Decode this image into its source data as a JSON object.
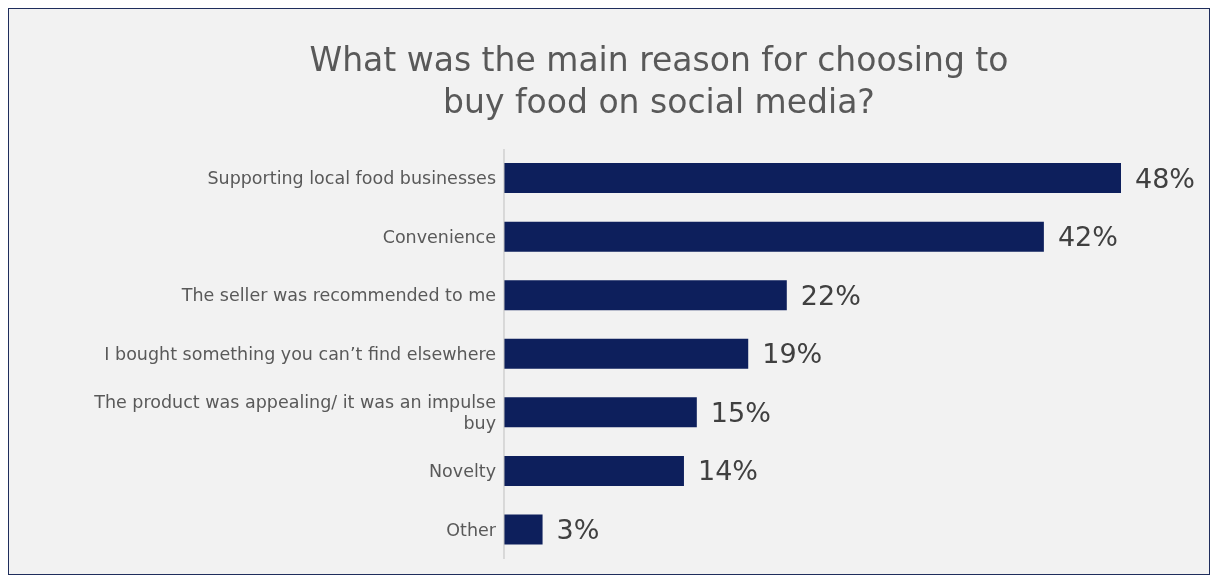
{
  "chart_data": {
    "type": "bar",
    "orientation": "horizontal",
    "title": "What was the main reason for choosing to buy food on social media?",
    "categories": [
      "Supporting local food businesses",
      "Convenience",
      "The seller was recommended to me",
      "I bought something you can’t find elsewhere",
      "The product was appealing/ it was an impulse buy",
      "Novelty",
      "Other"
    ],
    "values": [
      48,
      42,
      22,
      19,
      15,
      14,
      3
    ],
    "value_labels": [
      "48%",
      "42%",
      "22%",
      "19%",
      "15%",
      "14%",
      "3%"
    ],
    "color": "#0d1f5c",
    "grid": false,
    "legend": false
  }
}
